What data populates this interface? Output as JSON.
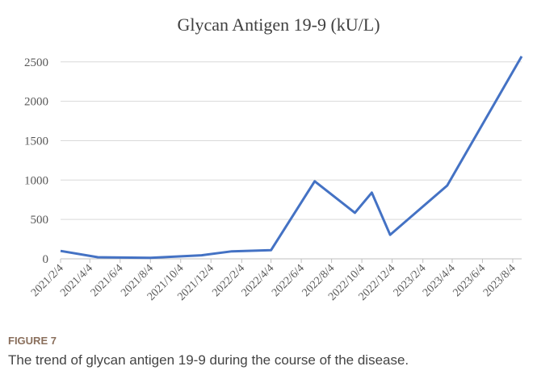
{
  "chart_data": {
    "type": "line",
    "title": "Glycan Antigen 19-9  (kU/L)",
    "x": [
      "2021/2/4",
      "2021/4/20",
      "2021/8/4",
      "2021/11/15",
      "2022/1/15",
      "2022/4/4",
      "2022/7/1",
      "2022/9/20",
      "2022/10/24",
      "2022/11/30",
      "2023/3/25",
      "2023/8/22"
    ],
    "values": [
      100,
      20,
      12,
      45,
      95,
      110,
      985,
      585,
      840,
      305,
      930,
      2570
    ],
    "color": "#4472c4",
    "xlim": [
      "2021/2/4",
      "2023/8/22"
    ],
    "xticks": [
      "2021/2/4",
      "2021/4/4",
      "2021/6/4",
      "2021/8/4",
      "2021/10/4",
      "2021/12/4",
      "2022/2/4",
      "2022/4/4",
      "2022/6/4",
      "2022/8/4",
      "2022/10/4",
      "2022/12/4",
      "2023/2/4",
      "2023/4/4",
      "2023/6/4",
      "2023/8/4"
    ],
    "ylim": [
      0,
      2600
    ],
    "yticks": [
      0,
      500,
      1000,
      1500,
      2000,
      2500
    ],
    "grid": true
  },
  "figure": {
    "label": "FIGURE 7",
    "caption": "The trend of glycan antigen 19-9 during the course of the disease."
  }
}
